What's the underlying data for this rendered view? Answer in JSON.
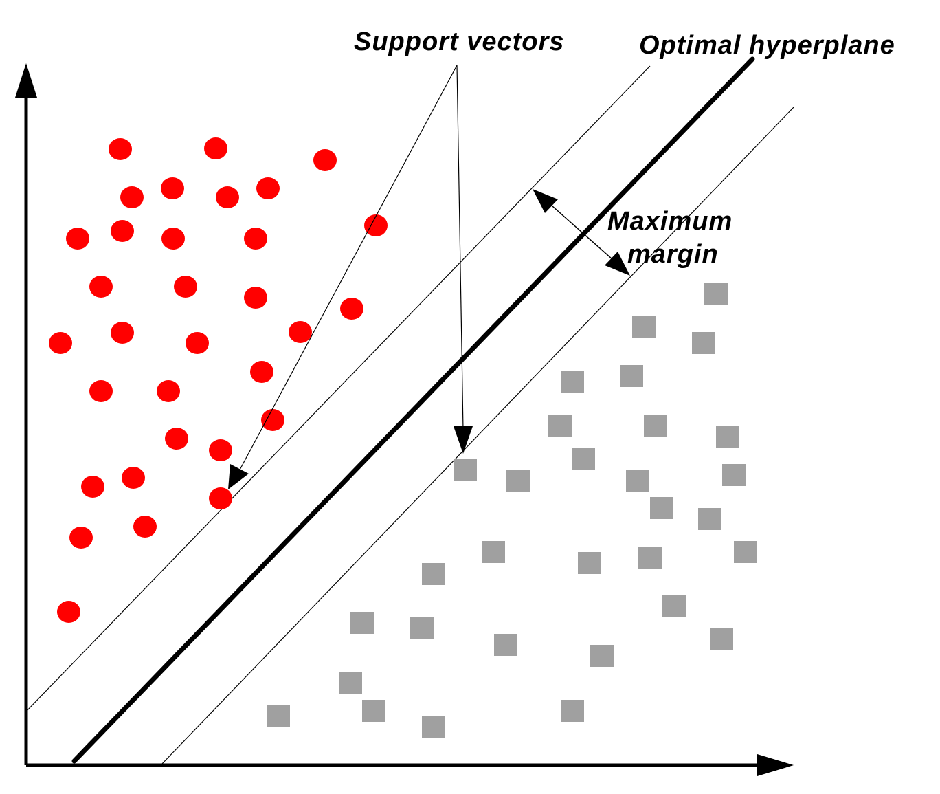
{
  "labels": {
    "support_vectors": "Support vectors",
    "optimal_hyperplane": "Optimal hyperplane",
    "maximum_margin_line1": "Maximum",
    "maximum_margin_line2": "margin"
  },
  "colors": {
    "class_a": "#ff0000",
    "class_b": "#a0a0a0",
    "ink": "#000000"
  }
}
